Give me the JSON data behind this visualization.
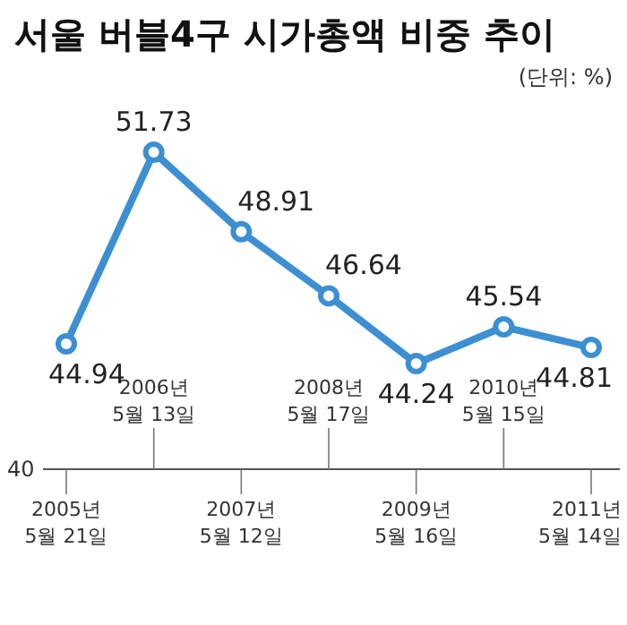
{
  "chart_data": {
    "type": "line",
    "title": "서울 버블4구 시가총액 비중 추이",
    "subtitle": "(단위: %)",
    "categories": [
      "2005년\n5월 21일",
      "2006년\n5월 13일",
      "2007년\n5월 12일",
      "2008년\n5월 17일",
      "2009년\n5월 16일",
      "2010년\n5월 15일",
      "2011년\n5월 14일"
    ],
    "series": [
      {
        "color": "#3c8fd2",
        "values": [
          44.94,
          51.73,
          48.91,
          46.64,
          44.24,
          45.54,
          44.81
        ]
      }
    ],
    "data_labels": true,
    "marker": "circle",
    "annotations": [
      "40"
    ]
  }
}
